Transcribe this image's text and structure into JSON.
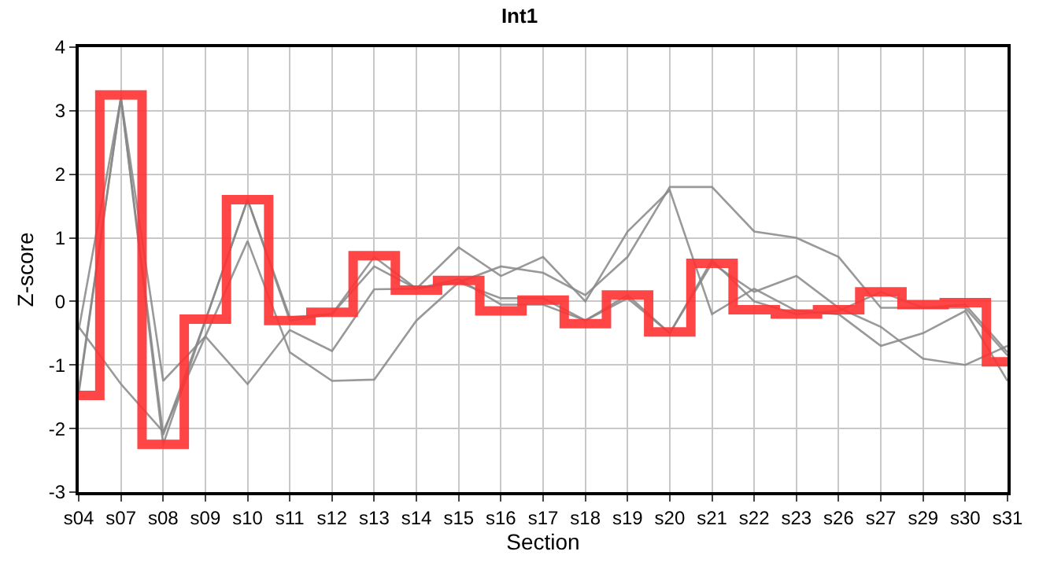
{
  "chart_data": {
    "type": "line",
    "title": "Int1",
    "xlabel": "Section",
    "ylabel": "Z-score",
    "categories": [
      "s04",
      "s07",
      "s08",
      "s09",
      "s10",
      "s11",
      "s12",
      "s13",
      "s14",
      "s15",
      "s16",
      "s17",
      "s18",
      "s19",
      "s20",
      "s21",
      "s22",
      "s23",
      "s26",
      "s27",
      "s29",
      "s30",
      "s31"
    ],
    "ylim": [
      -3,
      4
    ],
    "yticks": [
      -3,
      -2,
      -1,
      0,
      1,
      2,
      3,
      4
    ],
    "grid": true,
    "marker": "none",
    "line_style": "solid",
    "series": [
      {
        "color": "#888888",
        "values": [
          -1.45,
          3.2,
          -2.25,
          -0.3,
          1.6,
          -0.3,
          -0.2,
          0.7,
          0.2,
          0.35,
          -0.05,
          -0.05,
          -0.3,
          0.1,
          -0.5,
          0.65,
          0.0,
          -0.2,
          -0.15,
          0.15,
          -0.1,
          -0.05,
          -0.8
        ]
      },
      {
        "color": "#888888",
        "values": [
          -1.4,
          3.2,
          -2.1,
          -0.3,
          1.6,
          -0.25,
          -0.2,
          0.55,
          0.2,
          0.3,
          0.05,
          0.05,
          -0.3,
          0.05,
          -0.5,
          0.6,
          0.15,
          0.4,
          -0.1,
          -0.4,
          -0.9,
          -1.0,
          -0.7
        ]
      },
      {
        "color": "#888888",
        "values": [
          -0.4,
          -1.3,
          -2.05,
          -0.55,
          -1.3,
          -0.45,
          -0.78,
          0.19,
          0.2,
          0.85,
          0.4,
          0.7,
          0.0,
          1.1,
          1.75,
          -0.2,
          0.2,
          -0.15,
          -0.2,
          -0.7,
          -0.5,
          -0.15,
          -1.25
        ]
      },
      {
        "color": "#888888",
        "values": [
          -0.45,
          3.2,
          -1.25,
          -0.55,
          0.95,
          -0.8,
          -1.25,
          -1.23,
          -0.3,
          0.3,
          0.55,
          0.45,
          0.1,
          0.7,
          1.8,
          1.8,
          1.1,
          1.0,
          0.7,
          -0.1,
          -0.1,
          -0.1,
          -0.85
        ]
      },
      {
        "type": "step",
        "color": "#ff3333",
        "values": [
          -1.48,
          3.25,
          -2.25,
          -0.28,
          1.6,
          -0.3,
          -0.17,
          0.72,
          0.18,
          0.33,
          -0.15,
          0.02,
          -0.35,
          0.1,
          -0.48,
          0.6,
          -0.13,
          -0.2,
          -0.13,
          0.15,
          -0.05,
          -0.02,
          -0.95
        ]
      }
    ]
  }
}
